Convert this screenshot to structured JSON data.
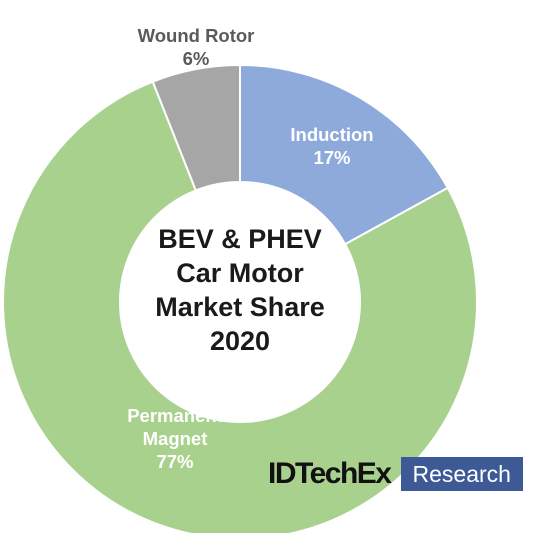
{
  "chart_data": {
    "type": "pie",
    "variant": "donut",
    "title_lines": [
      "BEV & PHEV",
      "Car Motor",
      "Market Share",
      "2020"
    ],
    "slices": [
      {
        "name": "Induction",
        "name_lines": [
          "Induction"
        ],
        "value": 17,
        "label": "17%",
        "color": "#8eaadb",
        "label_color": "#ffffff"
      },
      {
        "name": "Permanent Magnet",
        "name_lines": [
          "Permanent",
          "Magnet"
        ],
        "value": 77,
        "label": "77%",
        "color": "#a9d18e",
        "label_color": "#ffffff"
      },
      {
        "name": "Wound Rotor",
        "name_lines": [
          "Wound Rotor"
        ],
        "value": 6,
        "label": "6%",
        "color": "#a6a6a6",
        "label_color": "#5a5a5a"
      }
    ],
    "start_angle_deg": 0,
    "direction": "clockwise",
    "legend": "none"
  },
  "logo": {
    "word": "IDTechEx",
    "box_text": "Research",
    "box_color": "#3d5a97",
    "word_color": "#111111"
  }
}
